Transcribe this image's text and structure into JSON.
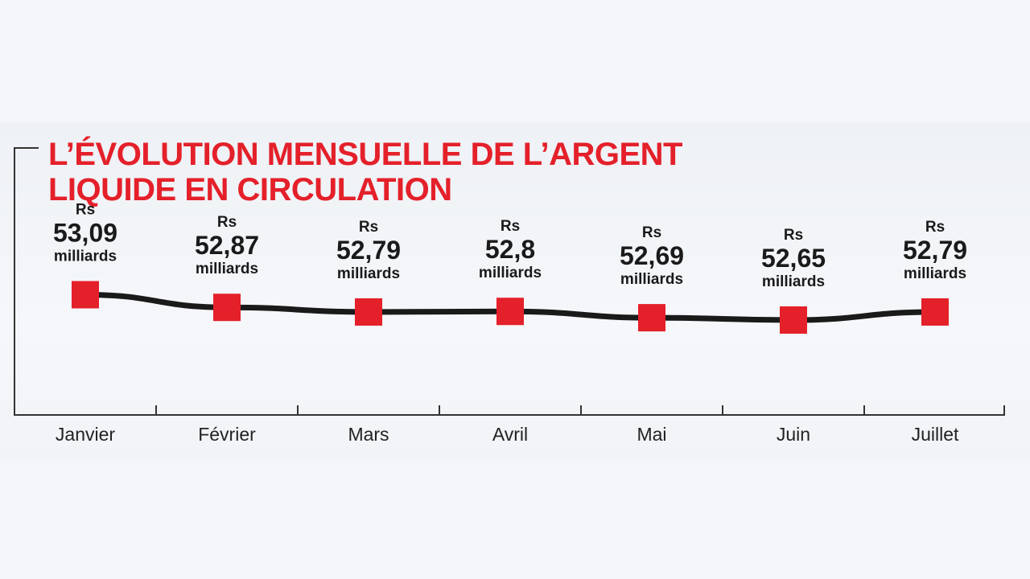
{
  "chart_data": {
    "type": "line",
    "title": "L’ÉVOLUTION MENSUELLE DE L’ARGENT LIQUIDE EN CIRCULATION",
    "categories": [
      "Janvier",
      "Février",
      "Mars",
      "Avril",
      "Mai",
      "Juin",
      "Juillet"
    ],
    "values": [
      53.09,
      52.87,
      52.79,
      52.8,
      52.69,
      52.65,
      52.79
    ],
    "value_labels": [
      "53,09",
      "52,87",
      "52,79",
      "52,8",
      "52,69",
      "52,65",
      "52,79"
    ],
    "currency_label": "Rs",
    "unit_label": "milliards",
    "xlabel": "",
    "ylabel": "",
    "ylim": [
      51.0,
      53.6
    ],
    "grid": false,
    "legend": "none",
    "colors": {
      "title": "#e4202a",
      "marker": "#e4202a",
      "line": "#1a1a1a",
      "axis": "#333333"
    }
  }
}
